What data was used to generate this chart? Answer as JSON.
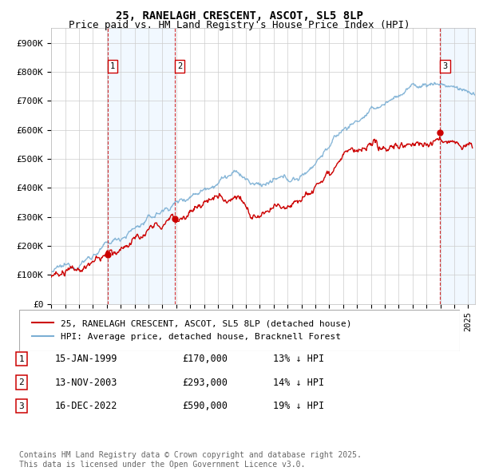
{
  "title": "25, RANELAGH CRESCENT, ASCOT, SL5 8LP",
  "subtitle": "Price paid vs. HM Land Registry's House Price Index (HPI)",
  "ylabel_ticks": [
    "£0",
    "£100K",
    "£200K",
    "£300K",
    "£400K",
    "£500K",
    "£600K",
    "£700K",
    "£800K",
    "£900K"
  ],
  "ytick_values": [
    0,
    100000,
    200000,
    300000,
    400000,
    500000,
    600000,
    700000,
    800000,
    900000
  ],
  "ylim": [
    0,
    950000
  ],
  "xlim_start": 1995.0,
  "xlim_end": 2025.5,
  "background_color": "#ffffff",
  "plot_bg_color": "#ffffff",
  "grid_color": "#cccccc",
  "hpi_color": "#7bafd4",
  "price_color": "#cc0000",
  "purchase_dates": [
    1999.04,
    2003.87,
    2022.96
  ],
  "purchase_prices": [
    170000,
    293000,
    590000
  ],
  "purchase_labels": [
    "1",
    "2",
    "3"
  ],
  "legend_label_price": "25, RANELAGH CRESCENT, ASCOT, SL5 8LP (detached house)",
  "legend_label_hpi": "HPI: Average price, detached house, Bracknell Forest",
  "table_entries": [
    {
      "label": "1",
      "date": "15-JAN-1999",
      "price": "£170,000",
      "hpi": "13% ↓ HPI"
    },
    {
      "label": "2",
      "date": "13-NOV-2003",
      "price": "£293,000",
      "hpi": "14% ↓ HPI"
    },
    {
      "label": "3",
      "date": "16-DEC-2022",
      "price": "£590,000",
      "hpi": "19% ↓ HPI"
    }
  ],
  "footer": "Contains HM Land Registry data © Crown copyright and database right 2025.\nThis data is licensed under the Open Government Licence v3.0.",
  "title_fontsize": 10,
  "subtitle_fontsize": 9,
  "tick_fontsize": 8,
  "legend_fontsize": 8,
  "table_fontsize": 8.5,
  "footer_fontsize": 7
}
